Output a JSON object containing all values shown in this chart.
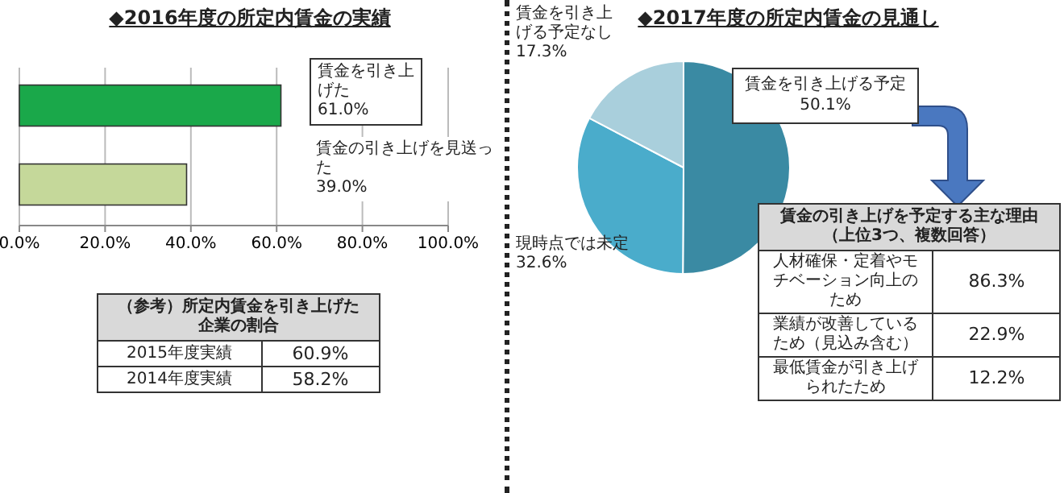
{
  "chart_data": [
    {
      "type": "bar",
      "orientation": "horizontal",
      "title": "◆2016年度の所定内賃金の実績",
      "categories": [
        "賃金を引き上げた",
        "賃金の引き上げを見送った"
      ],
      "values": [
        61.0,
        39.0
      ],
      "colors": [
        "#1aa84a",
        "#c5d89a"
      ],
      "value_labels": [
        "61.0%",
        "39.0%"
      ],
      "xlim": [
        0,
        100
      ],
      "xticks": [
        {
          "value": 0,
          "label": "0.0%"
        },
        {
          "value": 20,
          "label": "20.0%"
        },
        {
          "value": 40,
          "label": "40.0%"
        },
        {
          "value": 60,
          "label": "60.0%"
        },
        {
          "value": 80,
          "label": "80.0%"
        },
        {
          "value": 100,
          "label": "100.0%"
        }
      ],
      "grid": "x",
      "tick_labels": "x"
    },
    {
      "type": "other",
      "title": "（参考）所定内賃金を引き上げた企業の割合",
      "categories": [
        "2015年度実績",
        "2014年度実績"
      ],
      "value_labels": [
        "60.9%",
        "58.2%"
      ]
    },
    {
      "type": "pie",
      "title": "◆2017年度の所定内賃金の見通し",
      "categories": [
        "賃金を引き上げる予定",
        "現時点では未定",
        "賃金を引き上げる予定なし"
      ],
      "values": [
        50.1,
        32.6,
        17.3
      ],
      "colors": [
        "#3a8aa3",
        "#4aaccb",
        "#a9cfdc"
      ],
      "value_labels": [
        "50.1%",
        "32.6%",
        "17.3%"
      ]
    },
    {
      "type": "other",
      "title": "賃金の引き上げを予定する主な理由",
      "subtitle": "（上位3つ、複数回答）",
      "categories": [
        "人材確保・定着やモチベーション向上のため",
        "業績が改善しているため（見込み含む）",
        "最低賃金が引き上げられたため"
      ],
      "value_labels": [
        "86.3%",
        "22.9%",
        "12.2%"
      ]
    }
  ]
}
